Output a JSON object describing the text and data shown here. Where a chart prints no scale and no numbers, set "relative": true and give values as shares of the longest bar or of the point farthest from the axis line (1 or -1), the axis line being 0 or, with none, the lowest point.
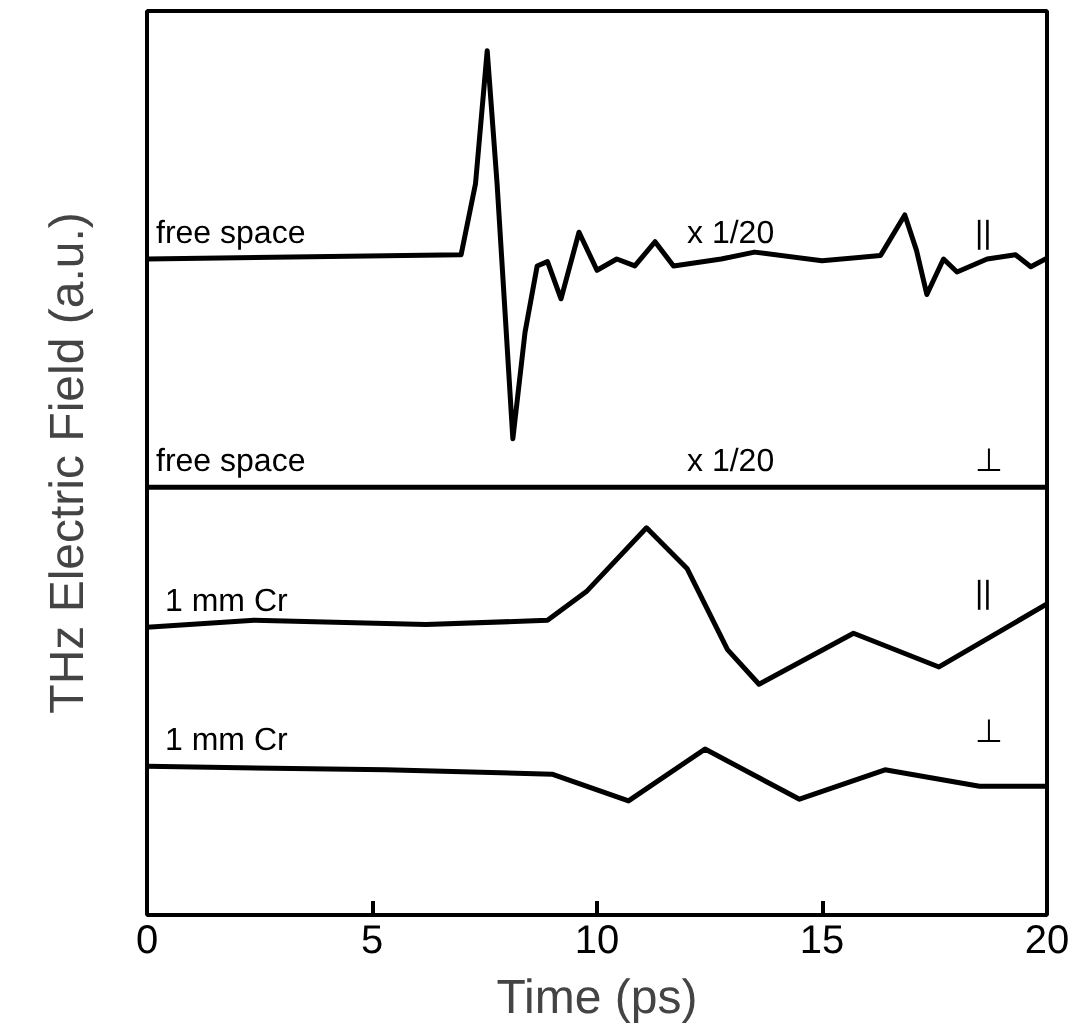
{
  "chart_data": {
    "type": "line",
    "relative": true,
    "xlabel": "Time (ps)",
    "ylabel": "THz Electric Field (a.u.)",
    "xlim": [
      0,
      20
    ],
    "xticks": [
      0,
      5,
      10,
      15,
      20
    ],
    "grid": false,
    "marker": "none",
    "line_style": "solid",
    "series": [
      {
        "color": "#000000",
        "x": [
          0,
          6.98,
          7.3,
          7.56,
          7.78,
          8.13,
          8.4,
          8.67,
          8.9,
          9.2,
          9.6,
          10.0,
          10.44,
          10.84,
          11.29,
          11.7,
          12.76,
          13.5,
          15.0,
          16.3,
          16.84,
          17.1,
          17.33,
          17.7,
          18.0,
          18.67,
          19.3,
          19.64,
          20
        ],
        "values": [
          0.759,
          0.764,
          0.846,
          1.0,
          0.846,
          0.551,
          0.674,
          0.751,
          0.756,
          0.713,
          0.79,
          0.746,
          0.759,
          0.751,
          0.779,
          0.751,
          0.759,
          0.767,
          0.757,
          0.763,
          0.81,
          0.769,
          0.718,
          0.759,
          0.744,
          0.759,
          0.764,
          0.75,
          0.76
        ]
      },
      {
        "color": "#000000",
        "x": [
          0,
          20
        ],
        "values": [
          0.495,
          0.495
        ]
      },
      {
        "color": "#000000",
        "x": [
          0,
          2.38,
          6.2,
          8.9,
          9.78,
          11.1,
          12.0,
          12.9,
          13.6,
          15.7,
          17.6,
          20
        ],
        "values": [
          0.333,
          0.341,
          0.336,
          0.341,
          0.375,
          0.448,
          0.401,
          0.307,
          0.267,
          0.326,
          0.287,
          0.36
        ]
      },
      {
        "color": "#000000",
        "x": [
          0,
          5.3,
          9.0,
          10.7,
          12.4,
          14.5,
          16.4,
          18.5,
          20
        ],
        "values": [
          0.172,
          0.168,
          0.163,
          0.132,
          0.192,
          0.134,
          0.168,
          0.149,
          0.149
        ]
      }
    ],
    "annotations": [
      "free space",
      "x 1/20",
      "||",
      "free space",
      "x 1/20",
      "⊥",
      "1 mm Cr",
      "||",
      "1 mm Cr",
      "⊥"
    ]
  }
}
